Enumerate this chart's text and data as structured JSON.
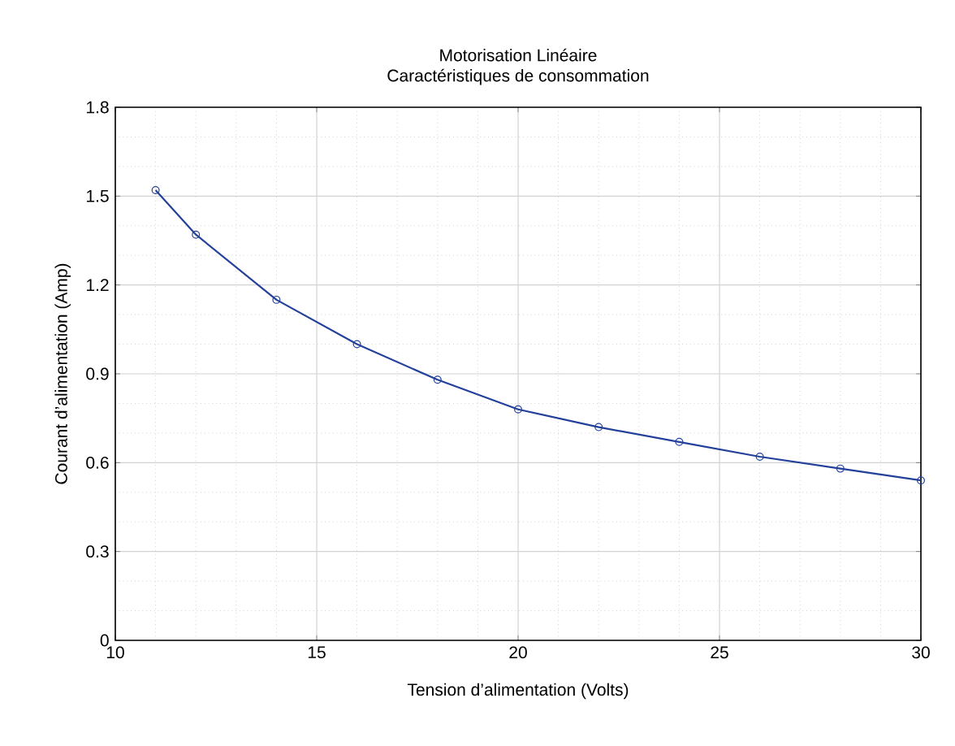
{
  "chart_data": {
    "type": "line",
    "title": "Motorisation Linéaire",
    "subtitle": "Caractéristiques de consommation",
    "xlabel": "Tension d’alimentation (Volts)",
    "ylabel": "Courant d’alimentation (Amp)",
    "x": [
      11,
      12,
      14,
      16,
      18,
      20,
      22,
      24,
      26,
      28,
      30
    ],
    "series": [
      {
        "color": "#23409a",
        "values": [
          1.52,
          1.37,
          1.15,
          1.0,
          0.88,
          0.78,
          0.72,
          0.67,
          0.62,
          0.58,
          0.54
        ]
      }
    ],
    "xlim": [
      10,
      30
    ],
    "xticks": [
      10,
      15,
      20,
      25,
      30
    ],
    "ylim": [
      0,
      1.8
    ],
    "yticks": [
      0,
      0.3,
      0.6,
      0.9,
      1.2,
      1.5,
      1.8
    ],
    "grid": true,
    "marker": "circle",
    "line_style": "solid"
  }
}
